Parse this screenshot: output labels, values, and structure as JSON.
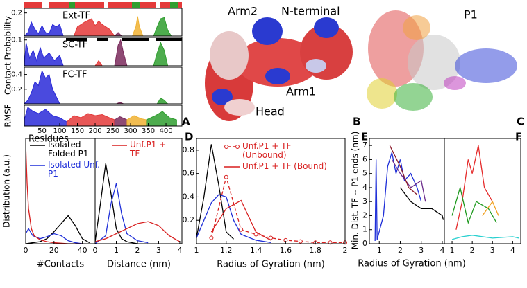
{
  "images": [
    {
      "labels": [
        "Arm2",
        "N-terminal",
        "Arm1",
        "Head"
      ],
      "letter": "B"
    },
    {
      "labels": [
        "P1"
      ],
      "letter": "C"
    }
  ],
  "chart_data": [
    {
      "type": "area",
      "letter": "A",
      "ylabel": "Contact Probability",
      "xlabel": "Residues",
      "xlim": [
        0,
        445
      ],
      "xticks": [
        50,
        100,
        150,
        200,
        250,
        300,
        350,
        400
      ],
      "panels": [
        {
          "label": "Ext-TF",
          "ylim": [
            0,
            0.24
          ],
          "yticks": [
            0.2
          ],
          "series": [
            {
              "color": "#2a2ad8",
              "x": [
                0,
                10,
                20,
                30,
                40,
                50,
                60,
                70,
                80,
                90,
                100,
                110
              ],
              "values": [
                0,
                0.03,
                0.12,
                0.06,
                0.02,
                0.09,
                0.03,
                0.02,
                0.1,
                0.08,
                0.1,
                0
              ]
            },
            {
              "color": "#e43a3a",
              "x": [
                140,
                150,
                170,
                190,
                200,
                210,
                220,
                240,
                255
              ],
              "values": [
                0,
                0.08,
                0.12,
                0.15,
                0.09,
                0.13,
                0.1,
                0.06,
                0
              ]
            },
            {
              "color": "#7a2a5c",
              "x": [
                255,
                265,
                275
              ],
              "values": [
                0,
                0.03,
                0
              ]
            },
            {
              "color": "#f0b232",
              "x": [
                305,
                315,
                320,
                325,
                335
              ],
              "values": [
                0,
                0.08,
                0.17,
                0.08,
                0
              ]
            },
            {
              "color": "#2f9e2f",
              "x": [
                365,
                375,
                385,
                395,
                405,
                415
              ],
              "values": [
                0,
                0.08,
                0.15,
                0.16,
                0.05,
                0
              ]
            }
          ]
        },
        {
          "label": "SC-TF",
          "ylim": [
            0,
            0.11
          ],
          "yticks": [
            0.1
          ],
          "series": [
            {
              "color": "#2a2ad8",
              "x": [
                0,
                5,
                15,
                25,
                35,
                45,
                55,
                70,
                85,
                100,
                110
              ],
              "values": [
                0,
                0.09,
                0.03,
                0.06,
                0.02,
                0.07,
                0.03,
                0.05,
                0.02,
                0.04,
                0
              ]
            },
            {
              "color": "#e43a3a",
              "x": [
                200,
                210,
                220
              ],
              "values": [
                0,
                0.02,
                0
              ]
            },
            {
              "color": "#7a2a5c",
              "x": [
                255,
                265,
                272,
                280,
                290
              ],
              "values": [
                0,
                0.08,
                0.1,
                0.05,
                0
              ]
            },
            {
              "color": "#2f9e2f",
              "x": [
                365,
                375,
                385,
                395,
                405
              ],
              "values": [
                0,
                0.05,
                0.09,
                0.06,
                0
              ]
            }
          ]
        },
        {
          "label": "FC-TF",
          "ylim": [
            0,
            0.5
          ],
          "yticks": [
            0.2,
            0.4
          ],
          "series": [
            {
              "color": "#2a2ad8",
              "x": [
                0,
                10,
                20,
                30,
                40,
                50,
                60,
                70,
                80,
                90,
                100
              ],
              "values": [
                0,
                0.05,
                0.15,
                0.3,
                0.25,
                0.45,
                0.35,
                0.4,
                0.2,
                0.1,
                0
              ]
            },
            {
              "color": "#7a2a5c",
              "x": [
                260,
                270,
                280
              ],
              "values": [
                0,
                0.02,
                0
              ]
            },
            {
              "color": "#2f9e2f",
              "x": [
                375,
                385,
                395,
                405
              ],
              "values": [
                0,
                0.08,
                0.05,
                0
              ]
            }
          ]
        },
        {
          "ylabel": "RMSF",
          "ylim": [
            0,
            1
          ],
          "series": [
            {
              "color": "#2a2ad8",
              "x": [
                0,
                10,
                25,
                40,
                60,
                80,
                100,
                120
              ],
              "values": [
                0.3,
                0.9,
                0.7,
                0.6,
                0.8,
                0.5,
                0.4,
                0.2
              ]
            },
            {
              "color": "#e43a3a",
              "x": [
                120,
                140,
                160,
                180,
                200,
                220,
                240,
                255
              ],
              "values": [
                0.2,
                0.5,
                0.4,
                0.6,
                0.5,
                0.55,
                0.4,
                0.3
              ]
            },
            {
              "color": "#7a2a5c",
              "x": [
                255,
                270,
                290
              ],
              "values": [
                0.3,
                0.45,
                0.3
              ]
            },
            {
              "color": "#f0b232",
              "x": [
                290,
                310,
                330,
                345
              ],
              "values": [
                0.3,
                0.5,
                0.35,
                0.3
              ]
            },
            {
              "color": "#2f9e2f",
              "x": [
                345,
                370,
                390,
                410,
                430
              ],
              "values": [
                0.3,
                0.5,
                0.7,
                0.4,
                0.3
              ]
            }
          ]
        }
      ]
    },
    {
      "type": "line",
      "ylabel": "Distribution (a.u.)",
      "xlabel": "#Contacts",
      "xlim": [
        0,
        49
      ],
      "ylim": [
        0,
        1.05
      ],
      "xticks": [
        0,
        20,
        40
      ],
      "series": [
        {
          "name": "Isolated Folded P1",
          "color": "#000000",
          "x": [
            0,
            5,
            10,
            15,
            20,
            25,
            30,
            35,
            40,
            45
          ],
          "values": [
            0,
            0.01,
            0.02,
            0.05,
            0.12,
            0.2,
            0.28,
            0.18,
            0.05,
            0.01
          ]
        },
        {
          "name": "Isolated Unf. P1",
          "color": "#1f2fd8",
          "x": [
            0,
            2,
            5,
            10,
            15,
            20,
            25,
            30,
            35,
            40
          ],
          "values": [
            0.1,
            0.15,
            0.08,
            0.05,
            0.07,
            0.1,
            0.08,
            0.03,
            0.01,
            0
          ]
        },
        {
          "color": "#d81f1f",
          "x": [
            0,
            1,
            2,
            4,
            6,
            10,
            15,
            20,
            30,
            40
          ],
          "values": [
            1.0,
            0.6,
            0.35,
            0.15,
            0.08,
            0.04,
            0.02,
            0.01,
            0,
            0
          ]
        }
      ]
    },
    {
      "type": "line",
      "xlabel": "Distance (nm)",
      "xlim": [
        0,
        4.1
      ],
      "ylim": [
        0,
        1.05
      ],
      "xticks": [
        0,
        1,
        2,
        3,
        4
      ],
      "series": [
        {
          "color": "#000000",
          "x": [
            0,
            0.25,
            0.5,
            0.75,
            1,
            1.25,
            1.5,
            2
          ],
          "values": [
            0.02,
            0.4,
            0.8,
            0.5,
            0.15,
            0.05,
            0.02,
            0
          ]
        },
        {
          "color": "#1f2fd8",
          "x": [
            0,
            0.5,
            0.75,
            1,
            1.25,
            1.5,
            2,
            2.5
          ],
          "values": [
            0,
            0.08,
            0.4,
            0.6,
            0.3,
            0.1,
            0.03,
            0.01
          ]
        },
        {
          "name": "Unf.P1 + TF",
          "color": "#d81f1f",
          "x": [
            0,
            0.5,
            1,
            1.5,
            2,
            2.5,
            3,
            3.5,
            4
          ],
          "values": [
            0.02,
            0.05,
            0.1,
            0.15,
            0.2,
            0.22,
            0.18,
            0.08,
            0.02
          ]
        }
      ]
    },
    {
      "type": "line",
      "letter": "D",
      "xlabel": "Radius of Gyration (nm)",
      "xlim": [
        1,
        2
      ],
      "ylim": [
        0,
        0.9
      ],
      "xticks": [
        1,
        1.2,
        1.4,
        1.6,
        1.8,
        2
      ],
      "yticks": [
        0.2,
        0.4,
        0.6,
        0.8
      ],
      "series": [
        {
          "color": "#000000",
          "x": [
            1.0,
            1.05,
            1.1,
            1.15,
            1.2,
            1.25
          ],
          "values": [
            0.05,
            0.4,
            0.85,
            0.5,
            0.1,
            0.04
          ]
        },
        {
          "color": "#1f2fd8",
          "x": [
            1.0,
            1.05,
            1.1,
            1.15,
            1.2,
            1.25,
            1.3,
            1.4,
            1.5
          ],
          "values": [
            0.05,
            0.2,
            0.35,
            0.42,
            0.4,
            0.2,
            0.08,
            0.03,
            0.01
          ]
        },
        {
          "name": "Unf.P1 + TF (Unbound)",
          "color": "#d81f1f",
          "dashed": true,
          "marker": "circle",
          "x": [
            1.1,
            1.2,
            1.3,
            1.4,
            1.5,
            1.6,
            1.7,
            1.8,
            1.9,
            2.0
          ],
          "values": [
            0.05,
            0.57,
            0.12,
            0.08,
            0.05,
            0.03,
            0.02,
            0.01,
            0.01,
            0.01
          ]
        },
        {
          "name": "Unf.P1 + TF (Bound)",
          "color": "#d81f1f",
          "x": [
            1.1,
            1.2,
            1.3,
            1.4,
            1.5
          ],
          "values": [
            0.1,
            0.3,
            0.37,
            0.1,
            0.03
          ]
        }
      ]
    },
    {
      "type": "line",
      "letter": "E",
      "ylabel": "Min. Dist. TF -- P1 ends (nm)",
      "xlabel": "Radius of Gyration (nm)",
      "xlim": [
        0.53,
        4.1
      ],
      "ylim": [
        0,
        7.5
      ],
      "xticks": [
        1,
        2,
        3,
        4
      ],
      "yticks": [
        0,
        1,
        2,
        3,
        4,
        5,
        6,
        7
      ],
      "series": [
        {
          "color": "#1f2fd8",
          "x": [
            0.8,
            0.85,
            0.9,
            1.2,
            1.4,
            1.6,
            1.8,
            2.0,
            2.2,
            2.5,
            2.8,
            3.0
          ],
          "values": [
            0.2,
            6,
            0.3,
            2,
            5.5,
            6.5,
            5,
            6,
            4.5,
            5,
            4,
            3
          ]
        },
        {
          "color": "#000000",
          "x": [
            2,
            2.5,
            3,
            3.5,
            4,
            4.05
          ],
          "values": [
            4,
            3,
            2.5,
            2.5,
            2,
            1.7
          ]
        },
        {
          "color": "#6a2a8a",
          "x": [
            1.6,
            2,
            2.5,
            3,
            3.2
          ],
          "values": [
            6,
            5,
            4,
            4.5,
            3
          ]
        },
        {
          "color": "#8a1a2a",
          "x": [
            1.5,
            2,
            2.4,
            2.8
          ],
          "values": [
            7,
            5.5,
            4,
            3.5
          ]
        }
      ]
    },
    {
      "type": "line",
      "letter": "F",
      "xlim": [
        0.62,
        4.4
      ],
      "ylim": [
        0,
        7.5
      ],
      "xticks": [
        1,
        2,
        3,
        4
      ],
      "series": [
        {
          "color": "#e52a2a",
          "x": [
            1.2,
            1.5,
            1.8,
            2.0,
            2.3,
            2.6,
            3.0
          ],
          "values": [
            1,
            3,
            6,
            5,
            7,
            4,
            3
          ]
        },
        {
          "color": "#1f9a1f",
          "x": [
            1.0,
            1.4,
            1.8,
            2.2,
            2.8,
            3.2
          ],
          "values": [
            2,
            4,
            1.5,
            3,
            2.5,
            1.5
          ]
        },
        {
          "color": "#f0a020",
          "x": [
            2.5,
            3,
            3.3
          ],
          "values": [
            2,
            3,
            2
          ]
        },
        {
          "color": "#2ad0d0",
          "x": [
            1,
            1.5,
            2,
            3,
            4,
            4.3
          ],
          "values": [
            0.3,
            0.5,
            0.6,
            0.4,
            0.5,
            0.4
          ]
        }
      ]
    }
  ]
}
